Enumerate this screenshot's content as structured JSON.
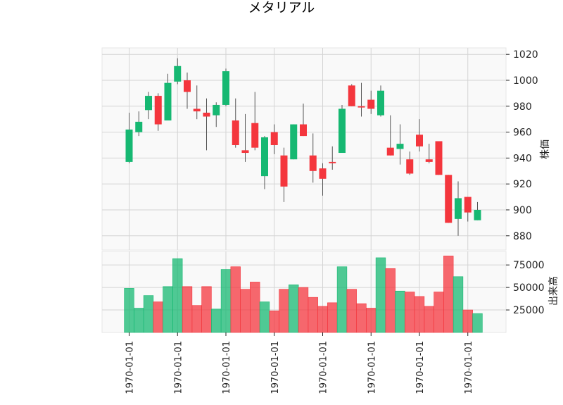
{
  "chart_data": {
    "type": "candlestick",
    "title": "メタリアル",
    "colors": {
      "up": "#16b872",
      "down": "#f4363d",
      "wick": "#555555",
      "panel_bg": "#f9f9f9",
      "grid": "#d4d4d4"
    },
    "price_axis": {
      "label": "株価",
      "ylim": [
        869,
        1025
      ],
      "ticks": [
        880,
        900,
        920,
        940,
        960,
        980,
        1000,
        1020
      ]
    },
    "volume_axis": {
      "label": "出来高",
      "ylim": [
        0,
        90000
      ],
      "ticks": [
        25000,
        50000,
        75000
      ]
    },
    "x_tick_labels": [
      "1970-01-01",
      "1970-01-01",
      "1970-01-01",
      "1970-01-01",
      "1970-01-01",
      "1970-01-01",
      "1970-01-01",
      "1970-01-01"
    ],
    "x_tick_indices": [
      0,
      5,
      10,
      15,
      20,
      25,
      30,
      35
    ],
    "candles": [
      {
        "open": 937,
        "high": 975,
        "low": 936,
        "close": 962,
        "volume": 49000
      },
      {
        "open": 960,
        "high": 976,
        "low": 957,
        "close": 968,
        "volume": 27000
      },
      {
        "open": 977,
        "high": 991,
        "low": 970,
        "close": 988,
        "volume": 41000
      },
      {
        "open": 988,
        "high": 990,
        "low": 961,
        "close": 966,
        "volume": 34000
      },
      {
        "open": 969,
        "high": 1005,
        "low": 969,
        "close": 998,
        "volume": 51000
      },
      {
        "open": 999,
        "high": 1017,
        "low": 997,
        "close": 1011,
        "volume": 82000
      },
      {
        "open": 1000,
        "high": 1006,
        "low": 978,
        "close": 991,
        "volume": 51000
      },
      {
        "open": 978,
        "high": 996,
        "low": 970,
        "close": 976,
        "volume": 30000
      },
      {
        "open": 975,
        "high": 986,
        "low": 946,
        "close": 972,
        "volume": 51000
      },
      {
        "open": 973,
        "high": 983,
        "low": 964,
        "close": 981,
        "volume": 26000
      },
      {
        "open": 981,
        "high": 1009,
        "low": 980,
        "close": 1007,
        "volume": 70000
      },
      {
        "open": 969,
        "high": 986,
        "low": 948,
        "close": 950,
        "volume": 73000
      },
      {
        "open": 946,
        "high": 974,
        "low": 937,
        "close": 944,
        "volume": 48000
      },
      {
        "open": 967,
        "high": 991,
        "low": 946,
        "close": 948,
        "volume": 56000
      },
      {
        "open": 926,
        "high": 957,
        "low": 916,
        "close": 956,
        "volume": 34000
      },
      {
        "open": 960,
        "high": 966,
        "low": 943,
        "close": 950,
        "volume": 24000
      },
      {
        "open": 942,
        "high": 948,
        "low": 906,
        "close": 918,
        "volume": 48000
      },
      {
        "open": 939,
        "high": 966,
        "low": 939,
        "close": 966,
        "volume": 53000
      },
      {
        "open": 966,
        "high": 982,
        "low": 957,
        "close": 957,
        "volume": 50000
      },
      {
        "open": 942,
        "high": 959,
        "low": 921,
        "close": 930,
        "volume": 39000
      },
      {
        "open": 932,
        "high": 936,
        "low": 911,
        "close": 924,
        "volume": 29000
      },
      {
        "open": 937,
        "high": 949,
        "low": 931,
        "close": 936,
        "volume": 33000
      },
      {
        "open": 944,
        "high": 981,
        "low": 944,
        "close": 978,
        "volume": 73000
      },
      {
        "open": 996,
        "high": 997,
        "low": 980,
        "close": 980,
        "volume": 48000
      },
      {
        "open": 980,
        "high": 998,
        "low": 972,
        "close": 979,
        "volume": 32000
      },
      {
        "open": 985,
        "high": 992,
        "low": 974,
        "close": 978,
        "volume": 27000
      },
      {
        "open": 973,
        "high": 996,
        "low": 972,
        "close": 992,
        "volume": 83000
      },
      {
        "open": 948,
        "high": 973,
        "low": 942,
        "close": 942,
        "volume": 71000
      },
      {
        "open": 947,
        "high": 966,
        "low": 935,
        "close": 951,
        "volume": 46000
      },
      {
        "open": 939,
        "high": 945,
        "low": 927,
        "close": 928,
        "volume": 45000
      },
      {
        "open": 958,
        "high": 970,
        "low": 945,
        "close": 949,
        "volume": 40000
      },
      {
        "open": 939,
        "high": 951,
        "low": 936,
        "close": 937,
        "volume": 29000
      },
      {
        "open": 953,
        "high": 953,
        "low": 927,
        "close": 927,
        "volume": 45000
      },
      {
        "open": 927,
        "high": 927,
        "low": 890,
        "close": 890,
        "volume": 85000
      },
      {
        "open": 893,
        "high": 922,
        "low": 880,
        "close": 909,
        "volume": 62000
      },
      {
        "open": 910,
        "high": 910,
        "low": 891,
        "close": 898,
        "volume": 25000
      },
      {
        "open": 892,
        "high": 906,
        "low": 892,
        "close": 900,
        "volume": 21000
      }
    ]
  }
}
